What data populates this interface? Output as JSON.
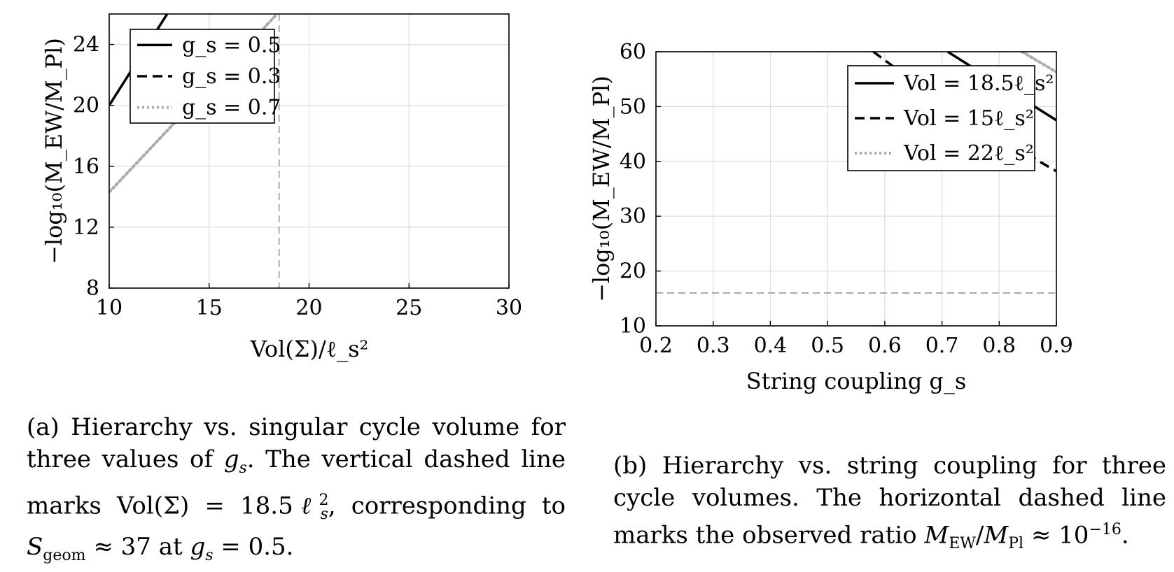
{
  "chart_data": [
    {
      "type": "line",
      "panel": "a",
      "xlabel": "Vol(Σ)/ℓ_s²",
      "ylabel": "−log₁₀(M_EW/M_Pl)",
      "xlim": [
        10,
        30
      ],
      "ylim": [
        8,
        26
      ],
      "x_ticks": [
        "10",
        "15",
        "20",
        "25",
        "30"
      ],
      "y_ticks": [
        "8",
        "12",
        "16",
        "20",
        "24"
      ],
      "grid": true,
      "legend_position": "top-left",
      "series": [
        {
          "name": "g_s = 0.5",
          "style": "solid",
          "color": "#000000",
          "x": [
            10,
            12.9
          ],
          "y": [
            20,
            26
          ]
        },
        {
          "name": "g_s = 0.3",
          "style": "dashed",
          "color": "#000000",
          "x": [],
          "y": []
        },
        {
          "name": "g_s = 0.7",
          "style": "dotted",
          "color": "#aaaaaa",
          "x": [
            10,
            18.4
          ],
          "y": [
            14.3,
            26
          ]
        }
      ],
      "reference_line": {
        "orientation": "vertical",
        "value": 18.5,
        "style": "dashed",
        "color": "#999999"
      }
    },
    {
      "type": "line",
      "panel": "b",
      "xlabel": "String coupling g_s",
      "ylabel": "−log₁₀(M_EW/M_Pl)",
      "xlim": [
        0.2,
        0.9
      ],
      "ylim": [
        10,
        60
      ],
      "x_ticks": [
        "0.2",
        "0.3",
        "0.4",
        "0.5",
        "0.6",
        "0.7",
        "0.8",
        "0.9"
      ],
      "y_ticks": [
        "10",
        "20",
        "30",
        "40",
        "50",
        "60"
      ],
      "grid": true,
      "legend_position": "top-right",
      "series": [
        {
          "name": "Vol = 18.5ℓ_s²",
          "style": "solid",
          "color": "#000000",
          "x": [
            0.71,
            0.9
          ],
          "y": [
            60,
            47.5
          ]
        },
        {
          "name": "Vol = 15ℓ_s²",
          "style": "dashed",
          "color": "#000000",
          "x": [
            0.58,
            0.615,
            0.87,
            0.9
          ],
          "y": [
            60,
            57.3,
            40,
            38.2
          ]
        },
        {
          "name": "Vol = 22ℓ_s²",
          "style": "dotted",
          "color": "#aaaaaa",
          "x": [
            0.84,
            0.9
          ],
          "y": [
            60,
            56.3
          ]
        }
      ],
      "reference_line": {
        "orientation": "horizontal",
        "value": 16,
        "style": "dashed",
        "color": "#999999"
      }
    }
  ],
  "captions": {
    "a": "(a) Hierarchy vs. singular cycle volume for three values of g_s. The vertical dashed line marks Vol(Σ) = 18.5ℓ_s², corresponding to S_geom ≈ 37 at g_s = 0.5.",
    "b": "(b) Hierarchy vs. string coupling for three cycle volumes. The horizontal dashed line marks the observed ratio M_EW/M_Pl ≈ 10⁻¹⁶."
  }
}
